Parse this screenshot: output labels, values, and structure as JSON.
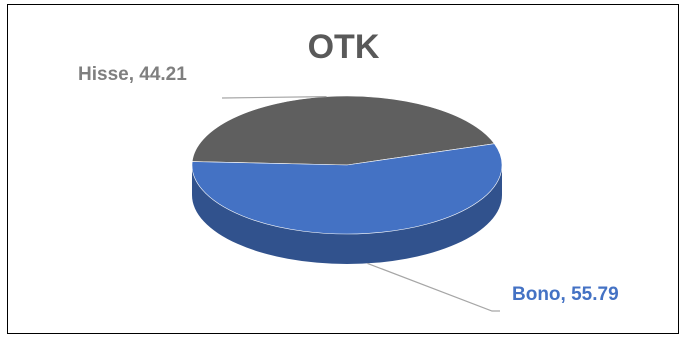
{
  "chart_data": {
    "type": "pie",
    "title": "OTK",
    "style": "3d-pie",
    "legend": "none",
    "slices": [
      {
        "label": "Hisse",
        "value": 44.21,
        "color": "#5f5f5f",
        "label_color": "#7f7f7f"
      },
      {
        "label": "Bono",
        "value": 55.79,
        "color": "#4472c4",
        "label_color": "#4472c4"
      }
    ],
    "data_labels": [
      "Hisse, 44.21",
      "Bono, 55.79"
    ]
  }
}
